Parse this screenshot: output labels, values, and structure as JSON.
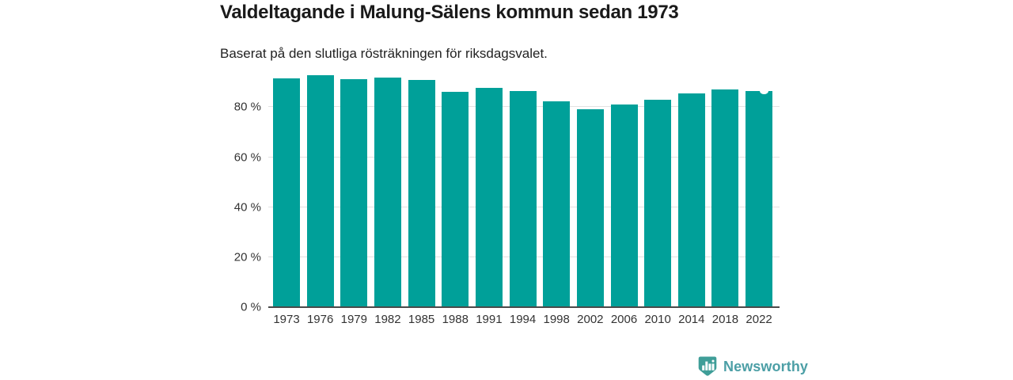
{
  "header": {
    "title": "Valdeltagande i Malung-Sälens kommun sedan 1973",
    "subtitle": "Baserat på den slutliga rösträkningen för riksdagsvalet."
  },
  "chart_data": {
    "type": "bar",
    "title": "Valdeltagande i Malung-Sälens kommun sedan 1973",
    "subtitle": "Baserat på den slutliga rösträkningen för riksdagsvalet.",
    "categories": [
      "1973",
      "1976",
      "1979",
      "1982",
      "1985",
      "1988",
      "1991",
      "1994",
      "1998",
      "2002",
      "2006",
      "2010",
      "2014",
      "2018",
      "2022"
    ],
    "values": [
      91.5,
      92.9,
      91.3,
      91.8,
      90.8,
      86.2,
      87.8,
      86.6,
      82.4,
      79.3,
      81.0,
      83.1,
      85.5,
      87.1,
      86.5
    ],
    "unit": "%",
    "yticks": [
      0,
      20,
      40,
      60,
      80
    ],
    "ytick_labels": [
      "0 %",
      "20 %",
      "40 %",
      "60 %",
      "80 %"
    ],
    "ylim": [
      0,
      95
    ],
    "xlabel": "",
    "ylabel": "",
    "grid": true,
    "legend": false,
    "bar_color": "#00A099",
    "gridline_color": "#e2e2e2",
    "axis_color": "#4a4a4a",
    "text_color": "#333333"
  },
  "footer": {
    "brand": "Newsworthy",
    "brand_color": "#4c9fa6",
    "badge_color": "#3f9e98",
    "logo_icon": "newsworthy-badge-bars-exclamation"
  }
}
